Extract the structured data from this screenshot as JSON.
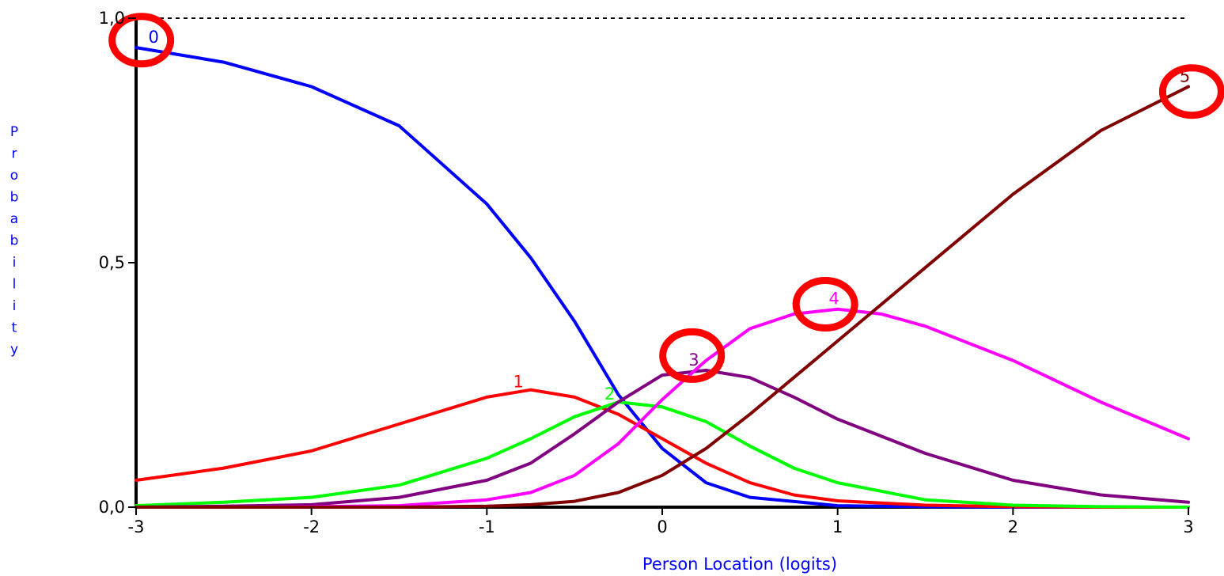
{
  "chart_data": {
    "type": "line",
    "title": "",
    "xlabel": "Person Location (logits)",
    "ylabel": "Probability",
    "xlim": [
      -3,
      3
    ],
    "ylim": [
      0,
      1
    ],
    "x_ticks": [
      "-3",
      "-2",
      "-1",
      "0",
      "1",
      "2",
      "3"
    ],
    "y_ticks": [
      "0,0",
      "0,5",
      "1,0"
    ],
    "grid": false,
    "reference_line": {
      "y": 1.0,
      "style": "dotted"
    },
    "series": [
      {
        "name": "0",
        "color": "#0000ff",
        "x": [
          -3,
          -2.5,
          -2,
          -1.5,
          -1,
          -0.75,
          -0.5,
          -0.25,
          0,
          0.25,
          0.5,
          1,
          1.5,
          2,
          2.5,
          3
        ],
        "y": [
          0.94,
          0.91,
          0.86,
          0.78,
          0.62,
          0.51,
          0.38,
          0.23,
          0.12,
          0.05,
          0.02,
          0.003,
          0.001,
          0.0,
          0.0,
          0.0
        ]
      },
      {
        "name": "1",
        "color": "#ff0000",
        "x": [
          -3,
          -2.5,
          -2,
          -1.5,
          -1,
          -0.75,
          -0.5,
          -0.25,
          0,
          0.25,
          0.5,
          0.75,
          1,
          1.5,
          2,
          2.5,
          3
        ],
        "y": [
          0.055,
          0.08,
          0.115,
          0.17,
          0.225,
          0.24,
          0.225,
          0.19,
          0.14,
          0.09,
          0.05,
          0.025,
          0.013,
          0.004,
          0.001,
          0.0,
          0.0
        ]
      },
      {
        "name": "2",
        "color": "#00ff00",
        "x": [
          -3,
          -2.5,
          -2,
          -1.5,
          -1,
          -0.75,
          -0.5,
          -0.25,
          0,
          0.25,
          0.5,
          0.75,
          1,
          1.5,
          2,
          2.5,
          3
        ],
        "y": [
          0.003,
          0.01,
          0.02,
          0.045,
          0.1,
          0.14,
          0.185,
          0.215,
          0.205,
          0.175,
          0.125,
          0.08,
          0.05,
          0.015,
          0.004,
          0.001,
          0.0
        ]
      },
      {
        "name": "3",
        "color": "#800080",
        "x": [
          -3,
          -2.5,
          -2,
          -1.5,
          -1,
          -0.75,
          -0.5,
          -0.25,
          0,
          0.25,
          0.5,
          0.75,
          1,
          1.5,
          2,
          2.5,
          3
        ],
        "y": [
          0.0,
          0.002,
          0.005,
          0.02,
          0.055,
          0.09,
          0.15,
          0.215,
          0.27,
          0.28,
          0.265,
          0.225,
          0.18,
          0.11,
          0.055,
          0.025,
          0.01
        ]
      },
      {
        "name": "4",
        "color": "#ff00ff",
        "x": [
          -3,
          -2.5,
          -2,
          -1.5,
          -1,
          -0.75,
          -0.5,
          -0.25,
          0,
          0.25,
          0.5,
          0.75,
          1,
          1.25,
          1.5,
          2,
          2.5,
          3
        ],
        "y": [
          0.0,
          0.0,
          0.001,
          0.003,
          0.015,
          0.03,
          0.065,
          0.13,
          0.22,
          0.3,
          0.365,
          0.395,
          0.405,
          0.395,
          0.37,
          0.3,
          0.215,
          0.14
        ]
      },
      {
        "name": "5",
        "color": "#800000",
        "x": [
          -3,
          -2.5,
          -2,
          -1.5,
          -1,
          -0.75,
          -0.5,
          -0.25,
          0,
          0.25,
          0.5,
          0.75,
          1,
          1.5,
          2,
          2.5,
          3
        ],
        "y": [
          0.0,
          0.0,
          0.0,
          0.0,
          0.002,
          0.005,
          0.012,
          0.03,
          0.065,
          0.12,
          0.19,
          0.265,
          0.34,
          0.49,
          0.64,
          0.77,
          0.86
        ]
      }
    ],
    "curve_labels": [
      {
        "text": "0",
        "x": -2.9,
        "y": 0.95,
        "series": "0"
      },
      {
        "text": "1",
        "x": -0.82,
        "y": 0.245,
        "series": "1"
      },
      {
        "text": "2",
        "x": -0.3,
        "y": 0.22,
        "series": "2"
      },
      {
        "text": "3",
        "x": 0.18,
        "y": 0.29,
        "series": "3"
      },
      {
        "text": "4",
        "x": 0.98,
        "y": 0.415,
        "series": "4"
      },
      {
        "text": "5",
        "x": 2.98,
        "y": 0.87,
        "series": "5"
      }
    ],
    "highlight_circles": [
      {
        "x": -2.97,
        "y": 0.955,
        "color": "#ff0000"
      },
      {
        "x": 0.17,
        "y": 0.31,
        "color": "#ff0000"
      },
      {
        "x": 0.93,
        "y": 0.415,
        "color": "#ff0000"
      },
      {
        "x": 3.02,
        "y": 0.85,
        "color": "#ff0000"
      }
    ],
    "axis_label_color": "#0000ff"
  }
}
